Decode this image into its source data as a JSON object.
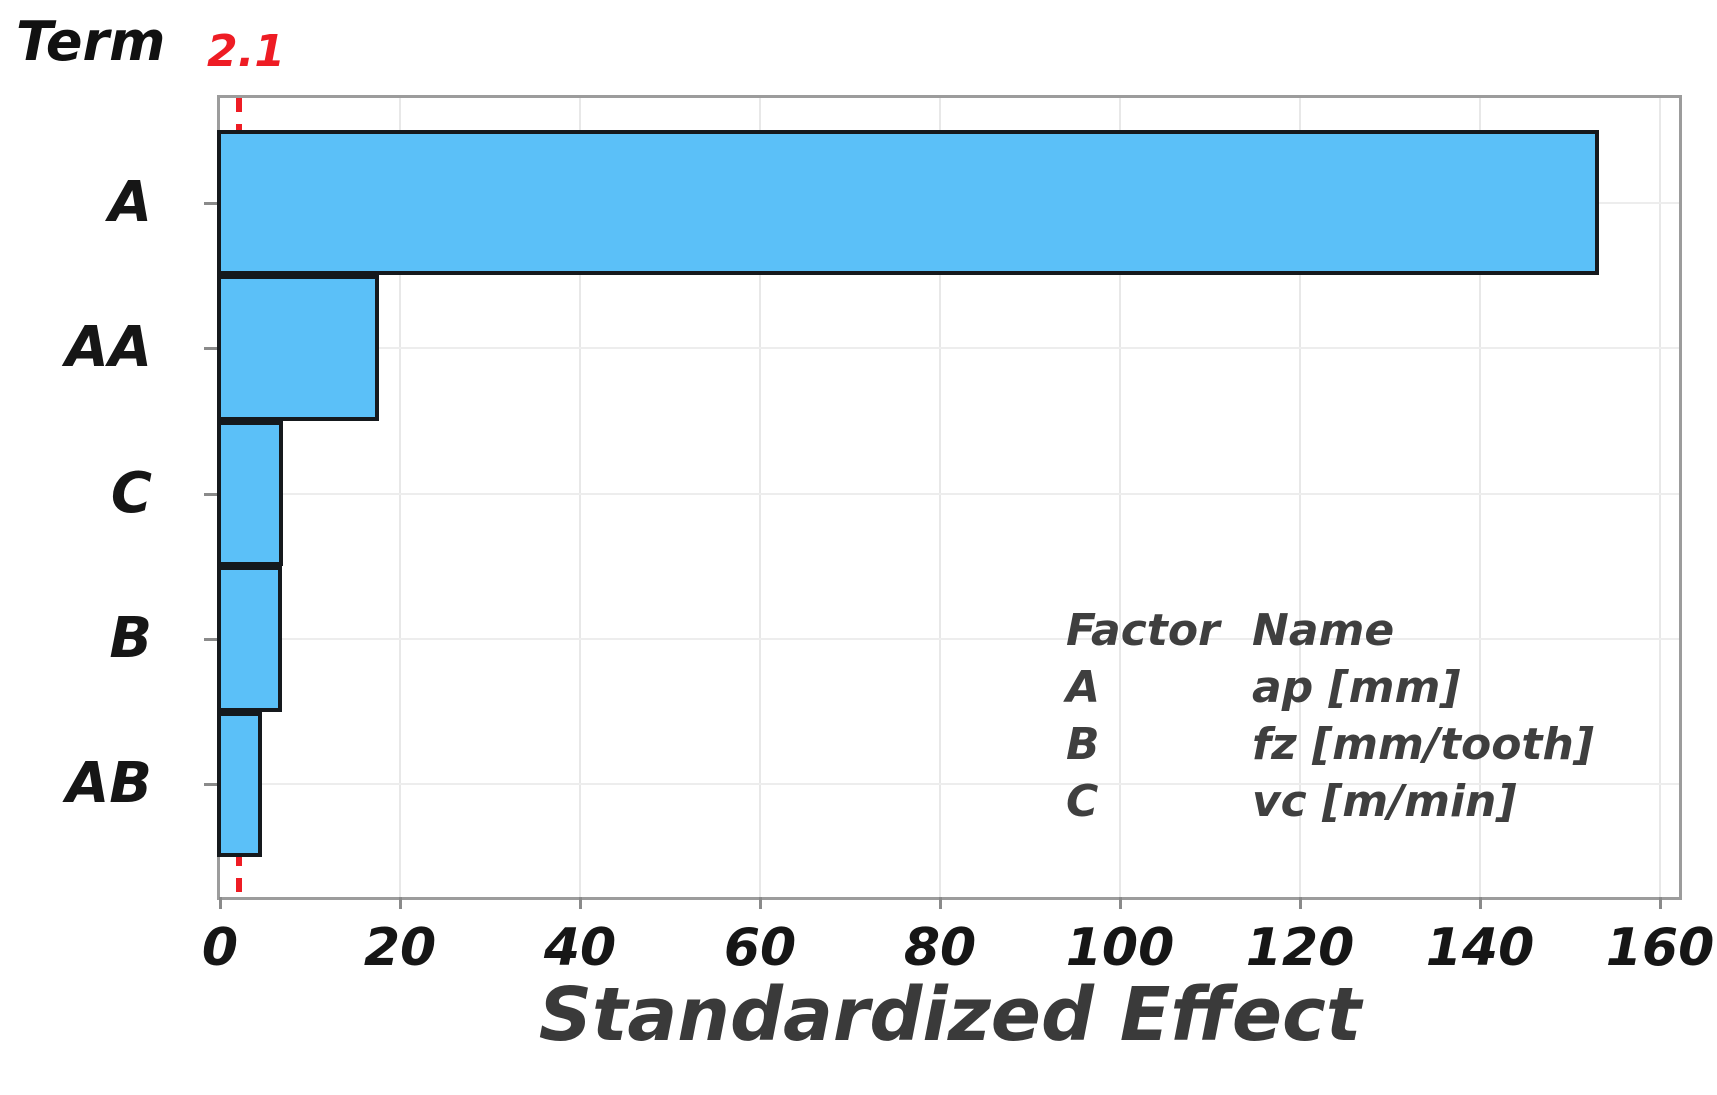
{
  "chart_data": {
    "type": "bar",
    "orientation": "horizontal",
    "title": "",
    "xlabel": "Standardized Effect",
    "ylabel": "Term",
    "categories": [
      "A",
      "AA",
      "C",
      "B",
      "AB"
    ],
    "values": [
      153,
      17.4,
      6.8,
      6.7,
      4.4
    ],
    "reference_line_value": 2.1,
    "reference_line_label": "2.1",
    "xlim": [
      0,
      163
    ],
    "xticks": [
      0,
      20,
      40,
      60,
      80,
      100,
      120,
      140,
      160
    ],
    "grid": "on",
    "bar_fill_color": "#5bc0f8",
    "bar_border_color": "#15191d",
    "reference_line_color": "#ee1c24",
    "legend": {
      "position": "inside-lower-right",
      "headers": [
        "Factor",
        "Name"
      ],
      "rows": [
        {
          "factor": "A",
          "name": "ap [mm]"
        },
        {
          "factor": "B",
          "name": "fz [mm/tooth]"
        },
        {
          "factor": "C",
          "name": "vc [m/min]"
        }
      ]
    }
  }
}
